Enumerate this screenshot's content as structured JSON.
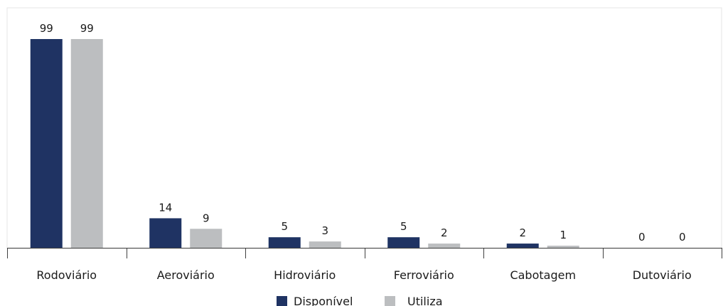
{
  "chart_data": {
    "type": "bar",
    "title": "",
    "xlabel": "",
    "ylabel": "",
    "categories": [
      "Rodoviário",
      "Aeroviário",
      "Hidroviário",
      "Ferroviário",
      "Cabotagem",
      "Dutoviário"
    ],
    "series": [
      {
        "name": "Disponível",
        "color": "#1f3363",
        "values": [
          99,
          14,
          5,
          5,
          2,
          0
        ]
      },
      {
        "name": "Utiliza",
        "color": "#bcbec0",
        "values": [
          99,
          9,
          3,
          2,
          1,
          0
        ]
      }
    ],
    "ylim": [
      0,
      99
    ],
    "grid": false,
    "y_axis_visible": false,
    "data_labels": true,
    "legend_position": "bottom-center"
  }
}
